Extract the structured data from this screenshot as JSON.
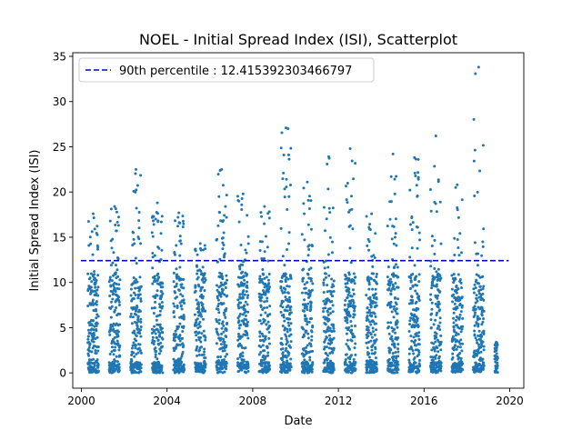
{
  "chart_data": {
    "type": "scatter",
    "title": "NOEL - Initial Spread Index (ISI), Scatterplot",
    "xlabel": "Date",
    "ylabel": "Initial Spread Index (ISI)",
    "xlim": [
      "1999-08-07",
      "2020-08-28"
    ],
    "ylim": [
      -1.69,
      35.4
    ],
    "x_ticks": [
      {
        "date": "2000-01-01",
        "label": "2000"
      },
      {
        "date": "2004-01-01",
        "label": "2004"
      },
      {
        "date": "2008-01-01",
        "label": "2008"
      },
      {
        "date": "2012-01-01",
        "label": "2012"
      },
      {
        "date": "2016-01-01",
        "label": "2016"
      },
      {
        "date": "2020-01-01",
        "label": "2020"
      }
    ],
    "y_ticks": [
      0,
      5,
      10,
      15,
      20,
      25,
      30,
      35
    ],
    "marker_color": "#1f77b4",
    "reference_line": {
      "value": 12.415392303466797,
      "color": "#0000cd",
      "style": "dashed",
      "legend_label": "90th percentile : 12.415392303466797"
    },
    "legend_position": "upper-left",
    "grid": false,
    "fire_seasons": [
      {
        "start": "2000-04-20",
        "end": "2000-10-20",
        "peak": 17.6
      },
      {
        "start": "2001-04-20",
        "end": "2001-10-20",
        "peak": 18.4
      },
      {
        "start": "2002-04-20",
        "end": "2002-10-20",
        "peak": 22.5
      },
      {
        "start": "2003-04-20",
        "end": "2003-10-20",
        "peak": 18.8
      },
      {
        "start": "2004-04-20",
        "end": "2004-10-20",
        "peak": 17.7
      },
      {
        "start": "2005-04-20",
        "end": "2005-10-20",
        "peak": 14.3
      },
      {
        "start": "2006-04-20",
        "end": "2006-10-20",
        "peak": 22.5
      },
      {
        "start": "2007-04-20",
        "end": "2007-10-20",
        "peak": 19.8
      },
      {
        "start": "2008-04-20",
        "end": "2008-10-20",
        "peak": 18.4
      },
      {
        "start": "2009-04-20",
        "end": "2009-10-20",
        "peak": 27.1
      },
      {
        "start": "2010-04-20",
        "end": "2010-10-20",
        "peak": 21.1
      },
      {
        "start": "2011-04-20",
        "end": "2011-10-20",
        "peak": 23.9
      },
      {
        "start": "2012-04-20",
        "end": "2012-10-20",
        "peak": 24.8
      },
      {
        "start": "2013-04-20",
        "end": "2013-10-20",
        "peak": 17.6
      },
      {
        "start": "2014-04-20",
        "end": "2014-10-20",
        "peak": 24.2
      },
      {
        "start": "2015-04-20",
        "end": "2015-10-20",
        "peak": 23.8
      },
      {
        "start": "2016-04-20",
        "end": "2016-10-20",
        "peak": 26.2
      },
      {
        "start": "2017-04-20",
        "end": "2017-10-20",
        "peak": 20.8
      },
      {
        "start": "2018-04-20",
        "end": "2018-10-20",
        "peak": 33.8
      },
      {
        "start": "2019-04-20",
        "end": "2019-06-10",
        "peak": 3.4
      }
    ]
  }
}
